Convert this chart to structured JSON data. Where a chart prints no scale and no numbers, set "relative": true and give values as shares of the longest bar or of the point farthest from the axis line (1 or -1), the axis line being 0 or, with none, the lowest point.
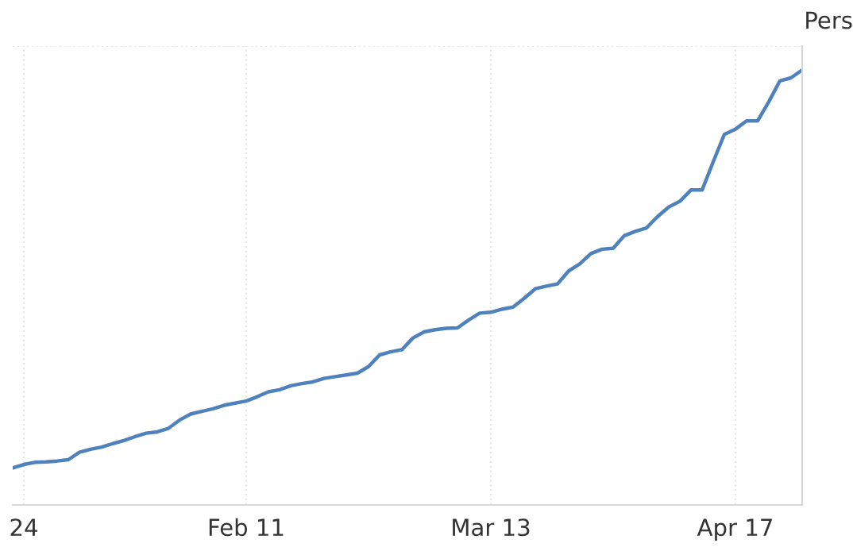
{
  "chart_data": {
    "type": "line",
    "relative": true,
    "ylabel": "Pers",
    "categories": [
      null,
      "24",
      null,
      null,
      null,
      null,
      null,
      null,
      null,
      null,
      null,
      null,
      null,
      null,
      null,
      null,
      null,
      null,
      null,
      null,
      null,
      "Feb 11",
      null,
      null,
      null,
      null,
      null,
      null,
      null,
      null,
      null,
      null,
      null,
      null,
      null,
      null,
      null,
      null,
      null,
      null,
      null,
      null,
      null,
      "Mar 13",
      null,
      null,
      null,
      null,
      null,
      null,
      null,
      null,
      null,
      null,
      null,
      null,
      null,
      null,
      null,
      null,
      null,
      null,
      null,
      null,
      null,
      "Apr 17",
      null,
      null,
      null,
      null,
      null,
      null
    ],
    "series": [
      {
        "color": "#4f81bd",
        "values": [
          0.085,
          0.093,
          0.098,
          0.099,
          0.101,
          0.104,
          0.121,
          0.128,
          0.133,
          0.141,
          0.148,
          0.157,
          0.165,
          0.168,
          0.176,
          0.195,
          0.209,
          0.215,
          0.221,
          0.229,
          0.234,
          0.239,
          0.249,
          0.26,
          0.265,
          0.274,
          0.279,
          0.283,
          0.291,
          0.295,
          0.299,
          0.303,
          0.318,
          0.345,
          0.352,
          0.357,
          0.384,
          0.398,
          0.403,
          0.406,
          0.407,
          0.425,
          0.441,
          0.443,
          0.45,
          0.455,
          0.475,
          0.497,
          0.503,
          0.508,
          0.538,
          0.554,
          0.578,
          0.588,
          0.59,
          0.619,
          0.629,
          0.637,
          0.663,
          0.685,
          0.698,
          0.724,
          0.724,
          0.789,
          0.852,
          0.864,
          0.883,
          0.883,
          0.927,
          0.975,
          0.982,
          1.0
        ]
      }
    ],
    "grid": "x",
    "legend": false,
    "marker": "none",
    "line_style": "solid"
  }
}
